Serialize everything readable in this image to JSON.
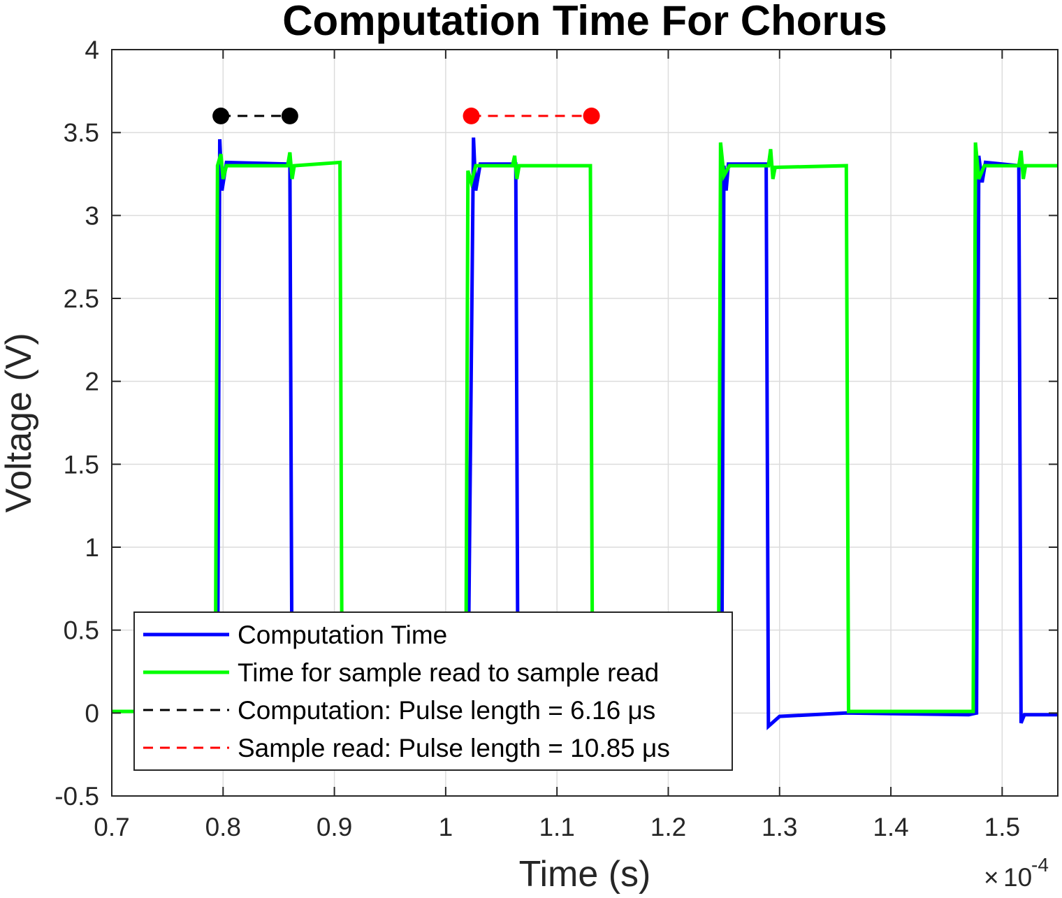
{
  "chart_data": {
    "type": "line",
    "title": "Computation Time For Chorus",
    "xlabel": "Time (s)",
    "ylabel": "Voltage (V)",
    "x_multiplier": "10",
    "x_multiplier_exponent": "-4",
    "xlim": [
      0.7,
      1.55
    ],
    "ylim": [
      -0.5,
      4
    ],
    "xticks": [
      "0.7",
      "0.8",
      "0.9",
      "1",
      "1.1",
      "1.2",
      "1.3",
      "1.4",
      "1.5"
    ],
    "yticks": [
      "-0.5",
      "0",
      "0.5",
      "1",
      "1.5",
      "2",
      "2.5",
      "3",
      "3.5",
      "4"
    ],
    "grid": true,
    "legend_position": "bottom-left",
    "series": [
      {
        "name": "Computation Time",
        "color": "#0000FF",
        "style": "solid",
        "points": [
          [
            0.7,
            0.01
          ],
          [
            0.795,
            0.01
          ],
          [
            0.797,
            3.46
          ],
          [
            0.799,
            3.15
          ],
          [
            0.803,
            3.32
          ],
          [
            0.86,
            3.31
          ],
          [
            0.862,
            0.01
          ],
          [
            1.02,
            0.01
          ],
          [
            1.025,
            3.47
          ],
          [
            1.027,
            3.15
          ],
          [
            1.031,
            3.31
          ],
          [
            1.063,
            3.31
          ],
          [
            1.065,
            0.01
          ],
          [
            1.248,
            0.01
          ],
          [
            1.25,
            3.3
          ],
          [
            1.252,
            3.15
          ],
          [
            1.254,
            3.31
          ],
          [
            1.288,
            3.31
          ],
          [
            1.29,
            -0.08
          ],
          [
            1.3,
            -0.02
          ],
          [
            1.36,
            0.0
          ],
          [
            1.47,
            -0.01
          ],
          [
            1.477,
            0.0
          ],
          [
            1.479,
            3.36
          ],
          [
            1.482,
            3.2
          ],
          [
            1.485,
            3.32
          ],
          [
            1.515,
            3.3
          ],
          [
            1.517,
            -0.06
          ],
          [
            1.52,
            -0.01
          ],
          [
            1.55,
            -0.01
          ]
        ]
      },
      {
        "name": "Time for sample read to sample read",
        "color": "#00FF00",
        "style": "solid",
        "points": [
          [
            0.7,
            0.01
          ],
          [
            0.793,
            0.01
          ],
          [
            0.795,
            3.3
          ],
          [
            0.798,
            3.37
          ],
          [
            0.8,
            3.22
          ],
          [
            0.803,
            3.3
          ],
          [
            0.858,
            3.3
          ],
          [
            0.86,
            3.38
          ],
          [
            0.862,
            3.22
          ],
          [
            0.864,
            3.3
          ],
          [
            0.905,
            3.32
          ],
          [
            0.907,
            0.01
          ],
          [
            1.018,
            0.01
          ],
          [
            1.02,
            3.27
          ],
          [
            1.023,
            3.2
          ],
          [
            1.027,
            3.3
          ],
          [
            1.06,
            3.3
          ],
          [
            1.062,
            3.36
          ],
          [
            1.064,
            3.22
          ],
          [
            1.066,
            3.3
          ],
          [
            1.13,
            3.3
          ],
          [
            1.132,
            0.01
          ],
          [
            1.245,
            0.01
          ],
          [
            1.247,
            3.44
          ],
          [
            1.25,
            3.24
          ],
          [
            1.255,
            3.3
          ],
          [
            1.29,
            3.3
          ],
          [
            1.292,
            3.4
          ],
          [
            1.294,
            3.22
          ],
          [
            1.296,
            3.29
          ],
          [
            1.36,
            3.3
          ],
          [
            1.362,
            0.01
          ],
          [
            1.474,
            0.01
          ],
          [
            1.476,
            3.44
          ],
          [
            1.479,
            3.22
          ],
          [
            1.484,
            3.3
          ],
          [
            1.515,
            3.3
          ],
          [
            1.517,
            3.39
          ],
          [
            1.519,
            3.22
          ],
          [
            1.521,
            3.3
          ],
          [
            1.55,
            3.3
          ]
        ]
      },
      {
        "name": "Computation: Pulse length = 6.16 μs",
        "color": "#000000",
        "style": "dashed",
        "points": [
          [
            0.798,
            3.6
          ],
          [
            0.86,
            3.6
          ]
        ]
      },
      {
        "name": "Sample read: Pulse length = 10.85 μs",
        "color": "#FF0000",
        "style": "dashed",
        "points": [
          [
            1.023,
            3.6
          ],
          [
            1.131,
            3.6
          ]
        ]
      }
    ]
  }
}
